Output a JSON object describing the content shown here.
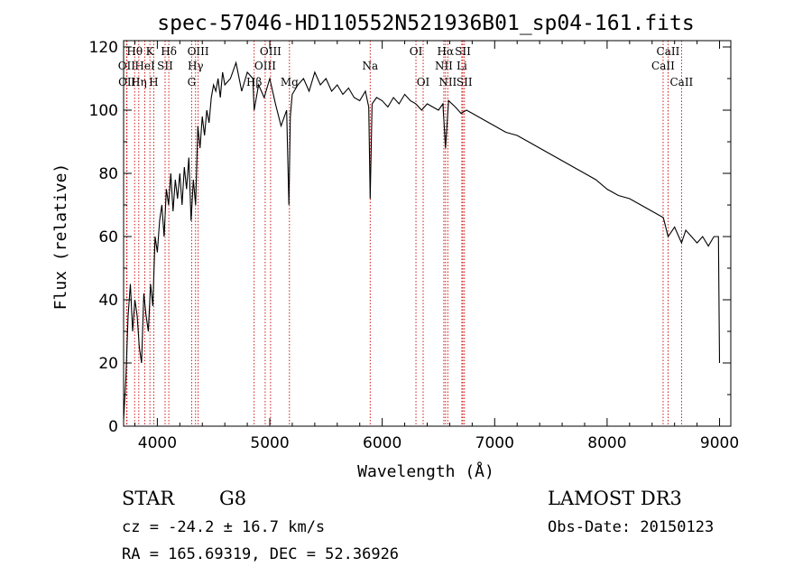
{
  "chart_data": {
    "type": "line",
    "title": "spec-57046-HD110552N521936B01_sp04-161.fits",
    "xlabel": "Wavelength (Å)",
    "ylabel": "Flux (relative)",
    "xlim": [
      3700,
      9100
    ],
    "ylim": [
      0,
      122
    ],
    "xticks": [
      4000,
      5000,
      6000,
      7000,
      8000,
      9000
    ],
    "yticks": [
      0,
      20,
      40,
      60,
      80,
      100,
      120
    ],
    "grid": false,
    "line_color": "#000000",
    "marker_color": "#cc0000",
    "series": [
      {
        "x": [
          3700,
          3720,
          3740,
          3760,
          3780,
          3800,
          3820,
          3840,
          3860,
          3880,
          3900,
          3920,
          3940,
          3960,
          3980,
          4000,
          4020,
          4040,
          4060,
          4080,
          4100,
          4120,
          4140,
          4160,
          4180,
          4200,
          4220,
          4240,
          4260,
          4280,
          4300,
          4320,
          4340,
          4360,
          4380,
          4400,
          4420,
          4440,
          4460,
          4480,
          4500,
          4520,
          4540,
          4560,
          4580,
          4600,
          4650,
          4700,
          4750,
          4800,
          4850,
          4861,
          4900,
          4950,
          5000,
          5050,
          5100,
          5150,
          5170,
          5183,
          5200,
          5250,
          5300,
          5350,
          5400,
          5450,
          5500,
          5550,
          5600,
          5650,
          5700,
          5750,
          5800,
          5850,
          5880,
          5893,
          5910,
          5950,
          6000,
          6050,
          6100,
          6150,
          6200,
          6250,
          6300,
          6350,
          6400,
          6450,
          6500,
          6540,
          6563,
          6590,
          6650,
          6700,
          6750,
          6800,
          6850,
          6900,
          7000,
          7100,
          7200,
          7300,
          7400,
          7500,
          7600,
          7700,
          7800,
          7900,
          8000,
          8100,
          8200,
          8300,
          8400,
          8500,
          8542,
          8600,
          8662,
          8700,
          8750,
          8800,
          8850,
          8900,
          8950,
          8990,
          9000
        ],
        "y": [
          2,
          15,
          35,
          45,
          30,
          40,
          35,
          25,
          20,
          42,
          35,
          30,
          45,
          38,
          60,
          55,
          65,
          70,
          60,
          75,
          70,
          80,
          68,
          78,
          72,
          80,
          70,
          82,
          75,
          85,
          65,
          78,
          70,
          95,
          88,
          98,
          92,
          100,
          96,
          104,
          108,
          106,
          110,
          104,
          112,
          108,
          110,
          115,
          106,
          112,
          110,
          100,
          108,
          104,
          110,
          102,
          95,
          100,
          70,
          98,
          105,
          108,
          110,
          106,
          112,
          108,
          110,
          106,
          108,
          105,
          107,
          104,
          103,
          106,
          101,
          72,
          102,
          104,
          103,
          101,
          104,
          102,
          105,
          103,
          102,
          100,
          102,
          101,
          100,
          102,
          88,
          103,
          101,
          99,
          100,
          99,
          98,
          97,
          95,
          93,
          92,
          90,
          88,
          86,
          84,
          82,
          80,
          78,
          75,
          73,
          72,
          70,
          68,
          66,
          60,
          63,
          58,
          62,
          60,
          58,
          60,
          57,
          60,
          60,
          20
        ],
        "name": ""
      }
    ],
    "annotations": [
      {
        "label": "Hθ",
        "x": 3798,
        "row": 1
      },
      {
        "label": "K",
        "x": 3934,
        "row": 1
      },
      {
        "label": "Hδ",
        "x": 4102,
        "row": 1
      },
      {
        "label": "OII",
        "x": 3727,
        "row": 2
      },
      {
        "label": "HeI",
        "x": 3889,
        "row": 2
      },
      {
        "label": "SII",
        "x": 4069,
        "row": 2
      },
      {
        "label": "OII",
        "x": 3730,
        "row": 3
      },
      {
        "label": "Hη",
        "x": 3835,
        "row": 3
      },
      {
        "label": "H",
        "x": 3968,
        "row": 3
      },
      {
        "label": "OIII",
        "x": 4363,
        "row": 1
      },
      {
        "label": "Hγ",
        "x": 4340,
        "row": 2
      },
      {
        "label": "G",
        "x": 4305,
        "row": 3
      },
      {
        "label": "OIII",
        "x": 5007,
        "row": 1
      },
      {
        "label": "OIII",
        "x": 4959,
        "row": 2
      },
      {
        "label": "Hβ",
        "x": 4861,
        "row": 3
      },
      {
        "label": "Mg",
        "x": 5175,
        "row": 3
      },
      {
        "label": "Na",
        "x": 5893,
        "row": 2
      },
      {
        "label": "OI",
        "x": 6300,
        "row": 1
      },
      {
        "label": "OI",
        "x": 6364,
        "row": 3
      },
      {
        "label": "Hα",
        "x": 6563,
        "row": 1
      },
      {
        "label": "SII",
        "x": 6717,
        "row": 1
      },
      {
        "label": "NII",
        "x": 6548,
        "row": 2
      },
      {
        "label": "Li",
        "x": 6708,
        "row": 2
      },
      {
        "label": "NII",
        "x": 6583,
        "row": 3
      },
      {
        "label": "SII",
        "x": 6731,
        "row": 3
      },
      {
        "label": "CaII",
        "x": 8542,
        "row": 1
      },
      {
        "label": "CaII",
        "x": 8498,
        "row": 2
      },
      {
        "label": "CaII",
        "x": 8662,
        "row": 3
      }
    ]
  },
  "info": {
    "obj_class": "STAR",
    "subclass": "G8",
    "survey": "LAMOST DR3",
    "cz": "cz = -24.2 ± 16.7 km/s",
    "obs_date": "Obs-Date: 20150123",
    "coords": "RA = 165.69319, DEC =  52.36926"
  }
}
